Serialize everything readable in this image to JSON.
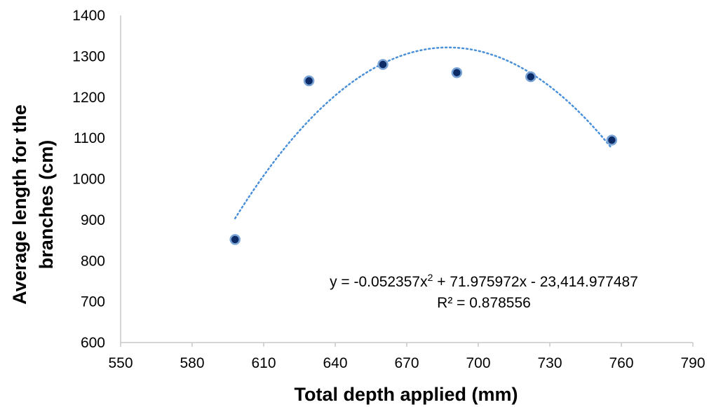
{
  "chart_data": {
    "type": "scatter",
    "title": "",
    "xlabel": "Total depth applied (mm)",
    "ylabel_lines": [
      "Average length for the",
      "branches (cm)"
    ],
    "xlim": [
      550,
      790
    ],
    "ylim": [
      600,
      1400
    ],
    "xticks": [
      550,
      580,
      610,
      640,
      670,
      700,
      730,
      760,
      790
    ],
    "yticks": [
      600,
      700,
      800,
      900,
      1000,
      1100,
      1200,
      1300,
      1400
    ],
    "grid": false,
    "legend": "none",
    "colors": {
      "point_fill": "#0d2b66",
      "point_ring": "#7aa4d6",
      "trendline": "#4a90d9",
      "axis": "#c8c8c8"
    },
    "series": [
      {
        "x": [
          598,
          629,
          660,
          691,
          722,
          756
        ],
        "y": [
          852,
          1240,
          1280,
          1260,
          1250,
          1095
        ]
      }
    ],
    "trendline": {
      "type": "polynomial",
      "coefficients": {
        "a": -0.052357,
        "b": 71.975972,
        "c": -23414.977487
      },
      "x_range": [
        598,
        756
      ],
      "equation_prefix": "y = -0.052357x",
      "equation_power": "2",
      "equation_suffix": " + 71.975972x - 23,414.977487",
      "r_squared_text": "R² = 0.878556"
    }
  }
}
